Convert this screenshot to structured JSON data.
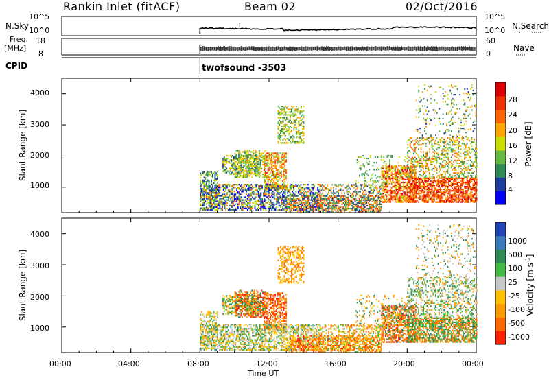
{
  "header": {
    "station": "Rankin Inlet (fitACF)",
    "beam": "Beam 02",
    "date": "02/Oct/2016"
  },
  "top_panels": {
    "nsky_label": "N.Sky",
    "nsky_ticks": [
      "10^5",
      "10^0"
    ],
    "nsearch_label": "N.Search",
    "nsearch_ticks": [
      "10^5",
      "10^0"
    ],
    "freq_label_1": "Freq.",
    "freq_label_2": "[MHz]",
    "freq_ticks": [
      "18",
      "8"
    ],
    "nave_label": "Nave",
    "nave_ticks": [
      "60",
      "0"
    ],
    "cpid_label": "CPID",
    "cpid_value": "twofsound -3503"
  },
  "colors": {
    "power_scale": [
      "#0000ff",
      "#1e3fa0",
      "#2e8b57",
      "#66bb44",
      "#ccdd00",
      "#ffa500",
      "#ff6600",
      "#ee3300",
      "#dd0000"
    ],
    "velocity_scale": [
      "#2244bb",
      "#3a7abf",
      "#2e8b57",
      "#44bb44",
      "#c8c8c8",
      "#ffc000",
      "#ff9900",
      "#ff6a00",
      "#ff2200"
    ]
  },
  "chart_data": [
    {
      "type": "heatmap",
      "name": "power",
      "ylabel": "Slant Range [km]",
      "ylim": [
        180,
        4500
      ],
      "yticks": [
        "1000",
        "2000",
        "3000",
        "4000"
      ],
      "colorbar_label": "Power [dB]",
      "colorbar_ticks": [
        "4",
        "8",
        "12",
        "16",
        "20",
        "24",
        "28"
      ],
      "xlim_hours": [
        0,
        24
      ],
      "data_start": "08:00"
    },
    {
      "type": "heatmap",
      "name": "velocity",
      "ylabel": "Slant Range [km]",
      "ylim": [
        180,
        4500
      ],
      "yticks": [
        "1000",
        "2000",
        "3000",
        "4000"
      ],
      "colorbar_label": "Velocity [m s",
      "colorbar_label_sup": "-1",
      "colorbar_label_end": "]",
      "colorbar_ticks": [
        "1000",
        "500",
        "100",
        "25",
        "-25",
        "-100",
        "-500",
        "-1000"
      ],
      "xlabel": "Time UT",
      "xticks": [
        "00:00",
        "04:00",
        "08:00",
        "12:00",
        "16:00",
        "20:00",
        "00:00"
      ],
      "data_start": "08:00"
    }
  ]
}
